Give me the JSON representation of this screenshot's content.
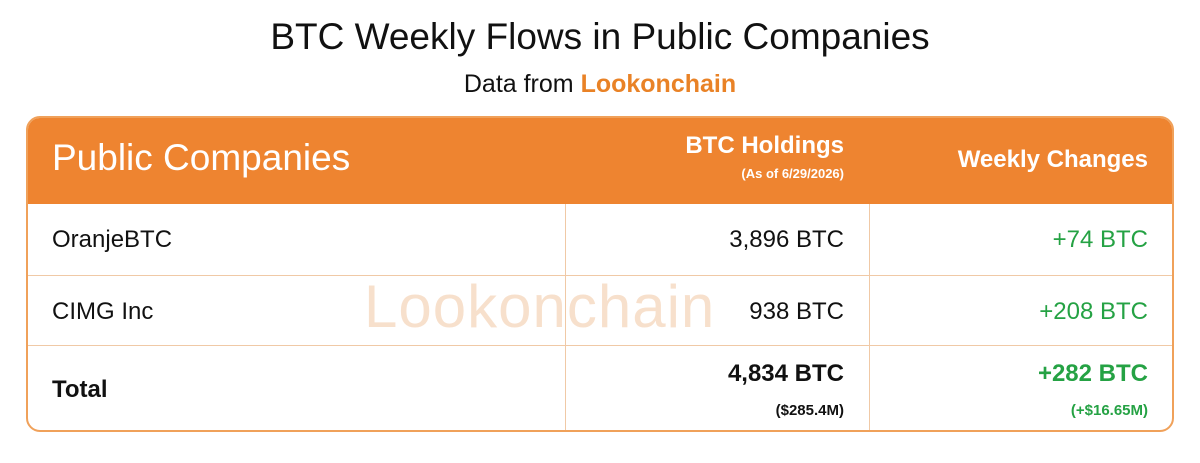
{
  "header": {
    "title": "BTC Weekly Flows in Public Companies",
    "subtitle_prefix": "Data from ",
    "subtitle_brand": "Lookonchain"
  },
  "table": {
    "columns": {
      "company": "Public Companies",
      "holdings": "BTC Holdings",
      "holdings_note": "(As of 6/29/2026)",
      "weekly": "Weekly Changes"
    },
    "rows": [
      {
        "name": "OranjeBTC",
        "holdings": "3,896 BTC",
        "change": "+74 BTC"
      },
      {
        "name": "CIMG Inc",
        "holdings": "938 BTC",
        "change": "+208 BTC"
      }
    ],
    "total": {
      "name": "Total",
      "holdings": "4,834 BTC",
      "holdings_usd": "($285.4M)",
      "change": "+282 BTC",
      "change_usd": "(+$16.65M)"
    }
  },
  "watermark": "Lookonchain",
  "colors": {
    "accent": "#ee8430",
    "brand": "#e98226",
    "positive": "#25a244"
  }
}
